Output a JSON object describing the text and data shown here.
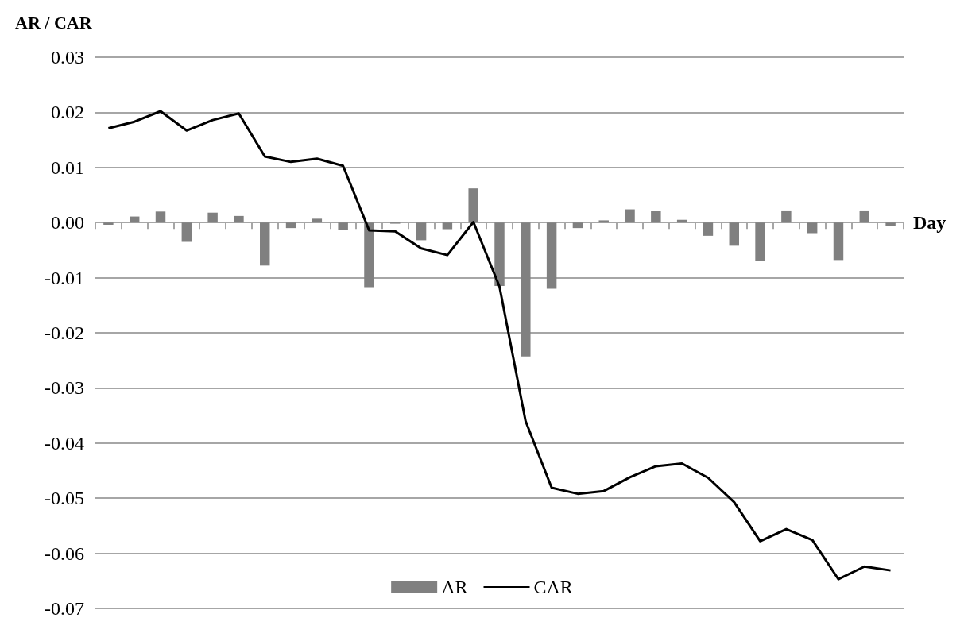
{
  "chart_data": {
    "type": "bar",
    "ylabel": "AR / CAR",
    "xlabel": "Day",
    "categories": [
      null,
      null,
      null,
      null,
      null,
      null,
      null,
      null,
      null,
      null,
      null,
      null,
      null,
      null,
      null,
      null,
      null,
      null,
      null,
      null,
      null,
      null,
      null,
      null,
      null,
      null,
      null,
      null,
      null,
      null,
      null
    ],
    "series": [
      {
        "name": "AR",
        "color": "#808080",
        "values": [
          -0.0004,
          0.0011,
          0.002,
          -0.0035,
          0.0018,
          0.0012,
          -0.0078,
          -0.001,
          0.0007,
          -0.0013,
          -0.0117,
          -0.0002,
          -0.0032,
          -0.0012,
          0.0062,
          -0.0115,
          -0.0243,
          -0.012,
          -0.001,
          0.0004,
          0.0024,
          0.0021,
          0.0005,
          -0.0024,
          -0.0042,
          -0.0069,
          0.0022,
          -0.0019,
          -0.0068,
          0.0022,
          -0.0006
        ]
      },
      {
        "name": "CAR",
        "type": "line",
        "color": "#000000",
        "values": [
          0.0171,
          0.0183,
          0.0202,
          0.0167,
          0.0186,
          0.0198,
          0.012,
          0.011,
          0.0116,
          0.0103,
          -0.0014,
          -0.0016,
          -0.0047,
          -0.0059,
          0.0001,
          -0.0116,
          -0.036,
          -0.0481,
          -0.0492,
          -0.0487,
          -0.0462,
          -0.0442,
          -0.0437,
          -0.0463,
          -0.0507,
          -0.0578,
          -0.0556,
          -0.0576,
          -0.0647,
          -0.0624,
          -0.0631
        ]
      }
    ],
    "ylim": [
      -0.07,
      0.03
    ],
    "yticks": [
      {
        "value": -0.07,
        "label": "-0.07"
      },
      {
        "value": -0.06,
        "label": "-0.06"
      },
      {
        "value": -0.05,
        "label": "-0.05"
      },
      {
        "value": -0.04,
        "label": "-0.04"
      },
      {
        "value": -0.03,
        "label": "-0.03"
      },
      {
        "value": -0.02,
        "label": "-0.02"
      },
      {
        "value": -0.01,
        "label": "-0.01"
      },
      {
        "value": 0,
        "label": "0.00"
      },
      {
        "value": 0.01,
        "label": "0.01"
      },
      {
        "value": 0.02,
        "label": "0.02"
      },
      {
        "value": 0.03,
        "label": "0.03"
      }
    ],
    "grid": "y",
    "legend": "bottom",
    "tick_labels": "y",
    "marker": "none",
    "line_style": "solid"
  }
}
